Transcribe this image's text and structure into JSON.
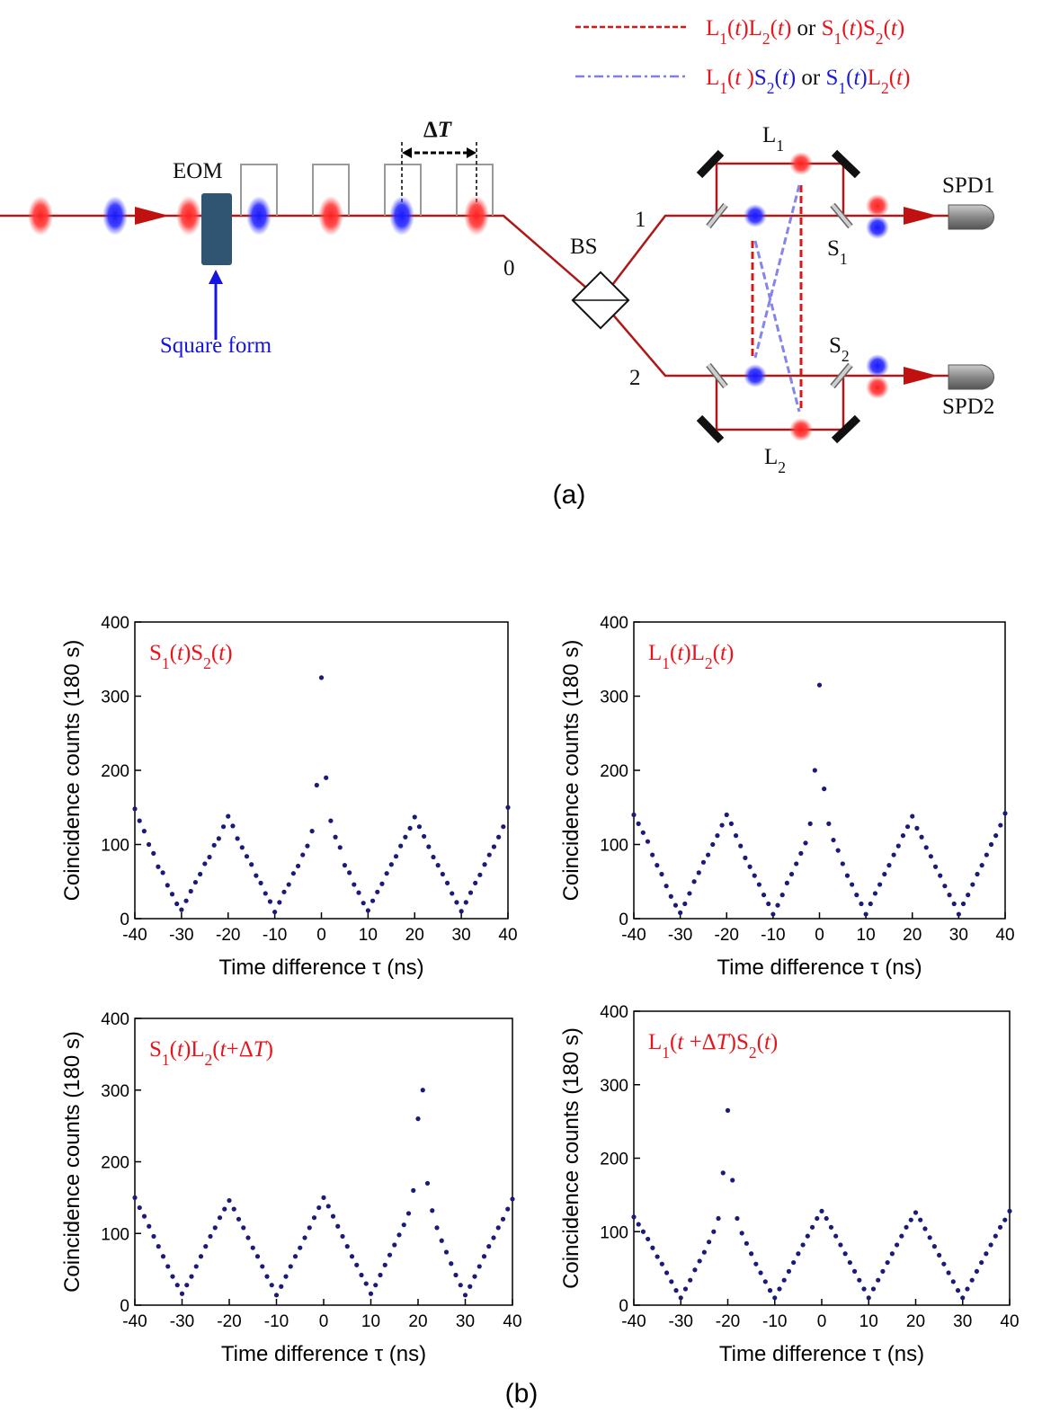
{
  "legend": [
    {
      "parts": [
        "L1(t)L2(t)",
        " or ",
        "S1(t)S2(t)"
      ],
      "colors": [
        "#e8141b",
        "#111111",
        "#e8141b"
      ]
    },
    {
      "parts": [
        "L1(t )",
        "S2(t)",
        " or ",
        "S1(t)",
        "L2(t)"
      ],
      "colors": [
        "#e8141b",
        "#1b1bd8",
        "#111111",
        "#1b1bd8",
        "#e8141b"
      ]
    }
  ],
  "diagram": {
    "eom": "EOM",
    "delta": "ΔT",
    "square": "Square form",
    "port0": "0",
    "port1": "1",
    "port2": "2",
    "bs": "BS",
    "l1": "L1",
    "l2": "L2",
    "s1": "S1",
    "s2": "S2",
    "spd1": "SPD1",
    "spd2": "SPD2"
  },
  "panel_labels": [
    "(a)",
    "(b)"
  ],
  "chart_data": [
    {
      "type": "scatter",
      "annotation": "S1(t)S2(t)",
      "xlabel": "Time difference τ (ns)",
      "ylabel": "Coincidence counts (180 s)",
      "color": "#1a1a7a",
      "xlim": [
        -40,
        40
      ],
      "ylim": [
        0,
        400
      ],
      "xticks": [
        -40,
        -30,
        -20,
        -10,
        0,
        10,
        20,
        30,
        40
      ],
      "yticks": [
        0,
        100,
        200,
        300,
        400
      ],
      "x": [
        -40,
        -39,
        -38,
        -37,
        -36,
        -35,
        -34,
        -33,
        -32,
        -31,
        -30,
        -29,
        -28,
        -27,
        -26,
        -25,
        -24,
        -23,
        -22,
        -21,
        -20,
        -19,
        -18,
        -17,
        -16,
        -15,
        -14,
        -13,
        -12,
        -11,
        -10,
        -9,
        -8,
        -7,
        -6,
        -5,
        -4,
        -3,
        -2,
        -1,
        0,
        1,
        2,
        3,
        4,
        5,
        6,
        7,
        8,
        9,
        10,
        11,
        12,
        13,
        14,
        15,
        16,
        17,
        18,
        19,
        20,
        21,
        22,
        23,
        24,
        25,
        26,
        27,
        28,
        29,
        30,
        31,
        32,
        33,
        34,
        35,
        36,
        37,
        38,
        39,
        40
      ],
      "y": [
        148,
        132,
        118,
        100,
        88,
        70,
        62,
        45,
        33,
        20,
        12,
        24,
        37,
        49,
        60,
        74,
        83,
        99,
        108,
        124,
        138,
        125,
        108,
        96,
        84,
        73,
        58,
        48,
        34,
        23,
        9,
        22,
        36,
        46,
        61,
        71,
        86,
        98,
        118,
        180,
        325,
        190,
        132,
        110,
        96,
        72,
        62,
        46,
        35,
        21,
        11,
        24,
        36,
        47,
        61,
        73,
        84,
        98,
        110,
        122,
        137,
        124,
        111,
        97,
        83,
        72,
        60,
        48,
        34,
        22,
        10,
        22,
        35,
        48,
        59,
        73,
        86,
        97,
        110,
        124,
        150
      ]
    },
    {
      "type": "scatter",
      "annotation": "L1(t)L2(t)",
      "xlabel": "Time difference τ (ns)",
      "ylabel": "Coincidence counts (180 s)",
      "color": "#1a1a7a",
      "xlim": [
        -40,
        40
      ],
      "ylim": [
        0,
        400
      ],
      "xticks": [
        -40,
        -30,
        -20,
        -10,
        0,
        10,
        20,
        30,
        40
      ],
      "yticks": [
        0,
        100,
        200,
        300,
        400
      ],
      "x": [
        -40,
        -39,
        -38,
        -37,
        -36,
        -35,
        -34,
        -33,
        -32,
        -31,
        -30,
        -29,
        -28,
        -27,
        -26,
        -25,
        -24,
        -23,
        -22,
        -21,
        -20,
        -19,
        -18,
        -17,
        -16,
        -15,
        -14,
        -13,
        -12,
        -11,
        -10,
        -9,
        -8,
        -7,
        -6,
        -5,
        -4,
        -3,
        -2,
        -1,
        0,
        1,
        2,
        3,
        4,
        5,
        6,
        7,
        8,
        9,
        10,
        11,
        12,
        13,
        14,
        15,
        16,
        17,
        18,
        19,
        20,
        21,
        22,
        23,
        24,
        25,
        26,
        27,
        28,
        29,
        30,
        31,
        32,
        33,
        34,
        35,
        36,
        37,
        38,
        39,
        40
      ],
      "y": [
        140,
        128,
        116,
        104,
        86,
        72,
        60,
        44,
        30,
        18,
        8,
        20,
        34,
        50,
        62,
        76,
        86,
        100,
        112,
        126,
        140,
        128,
        112,
        98,
        82,
        70,
        58,
        46,
        32,
        20,
        6,
        18,
        32,
        48,
        60,
        74,
        88,
        102,
        128,
        200,
        315,
        175,
        128,
        106,
        92,
        74,
        58,
        46,
        32,
        20,
        6,
        20,
        34,
        46,
        60,
        72,
        86,
        98,
        112,
        124,
        138,
        122,
        110,
        96,
        84,
        70,
        58,
        44,
        32,
        20,
        6,
        20,
        32,
        46,
        60,
        72,
        86,
        100,
        112,
        126,
        142
      ]
    },
    {
      "type": "scatter",
      "annotation": "S1(t)L2(t+ΔT)",
      "xlabel": "Time difference τ (ns)",
      "ylabel": "Coincidence counts (180 s)",
      "color": "#1a1a7a",
      "xlim": [
        -40,
        40
      ],
      "ylim": [
        0,
        400
      ],
      "xticks": [
        -40,
        -30,
        -20,
        -10,
        0,
        10,
        20,
        30,
        40
      ],
      "yticks": [
        0,
        100,
        200,
        300,
        400
      ],
      "x": [
        -40,
        -39,
        -38,
        -37,
        -36,
        -35,
        -34,
        -33,
        -32,
        -31,
        -30,
        -29,
        -28,
        -27,
        -26,
        -25,
        -24,
        -23,
        -22,
        -21,
        -20,
        -19,
        -18,
        -17,
        -16,
        -15,
        -14,
        -13,
        -12,
        -11,
        -10,
        -9,
        -8,
        -7,
        -6,
        -5,
        -4,
        -3,
        -2,
        -1,
        0,
        1,
        2,
        3,
        4,
        5,
        6,
        7,
        8,
        9,
        10,
        11,
        12,
        13,
        14,
        15,
        16,
        17,
        18,
        19,
        20,
        21,
        22,
        23,
        24,
        25,
        26,
        27,
        28,
        29,
        30,
        31,
        32,
        33,
        34,
        35,
        36,
        37,
        38,
        39,
        40
      ],
      "y": [
        150,
        136,
        124,
        110,
        96,
        82,
        68,
        54,
        40,
        28,
        16,
        28,
        40,
        54,
        68,
        82,
        96,
        108,
        122,
        134,
        146,
        134,
        120,
        108,
        94,
        80,
        68,
        54,
        40,
        28,
        14,
        26,
        40,
        54,
        68,
        80,
        94,
        108,
        122,
        136,
        150,
        138,
        124,
        110,
        96,
        82,
        68,
        56,
        42,
        30,
        16,
        28,
        42,
        56,
        70,
        84,
        98,
        112,
        128,
        160,
        260,
        300,
        170,
        132,
        108,
        90,
        74,
        58,
        42,
        28,
        14,
        26,
        40,
        54,
        68,
        82,
        94,
        108,
        120,
        134,
        148
      ]
    },
    {
      "type": "scatter",
      "annotation": "L1(t +ΔT)S2(t)",
      "xlabel": "Time difference τ (ns)",
      "ylabel": "Coincidence counts (180 s)",
      "color": "#1a1a7a",
      "xlim": [
        -40,
        40
      ],
      "ylim": [
        0,
        400
      ],
      "xticks": [
        -40,
        -30,
        -20,
        -10,
        0,
        10,
        20,
        30,
        40
      ],
      "yticks": [
        0,
        100,
        200,
        300,
        400
      ],
      "x": [
        -40,
        -39,
        -38,
        -37,
        -36,
        -35,
        -34,
        -33,
        -32,
        -31,
        -30,
        -29,
        -28,
        -27,
        -26,
        -25,
        -24,
        -23,
        -22,
        -21,
        -20,
        -19,
        -18,
        -17,
        -16,
        -15,
        -14,
        -13,
        -12,
        -11,
        -10,
        -9,
        -8,
        -7,
        -6,
        -5,
        -4,
        -3,
        -2,
        -1,
        0,
        1,
        2,
        3,
        4,
        5,
        6,
        7,
        8,
        9,
        10,
        11,
        12,
        13,
        14,
        15,
        16,
        17,
        18,
        19,
        20,
        21,
        22,
        23,
        24,
        25,
        26,
        27,
        28,
        29,
        30,
        31,
        32,
        33,
        34,
        35,
        36,
        37,
        38,
        39,
        40
      ],
      "y": [
        120,
        110,
        100,
        90,
        78,
        66,
        56,
        44,
        32,
        20,
        10,
        22,
        34,
        48,
        60,
        72,
        86,
        100,
        118,
        180,
        265,
        170,
        118,
        98,
        84,
        70,
        56,
        44,
        32,
        20,
        10,
        22,
        34,
        46,
        58,
        70,
        82,
        94,
        106,
        118,
        128,
        118,
        106,
        94,
        82,
        70,
        58,
        46,
        34,
        22,
        10,
        22,
        34,
        46,
        58,
        70,
        82,
        94,
        106,
        116,
        126,
        116,
        104,
        92,
        80,
        68,
        56,
        44,
        32,
        20,
        10,
        22,
        34,
        46,
        58,
        70,
        82,
        94,
        106,
        116,
        128
      ]
    }
  ]
}
